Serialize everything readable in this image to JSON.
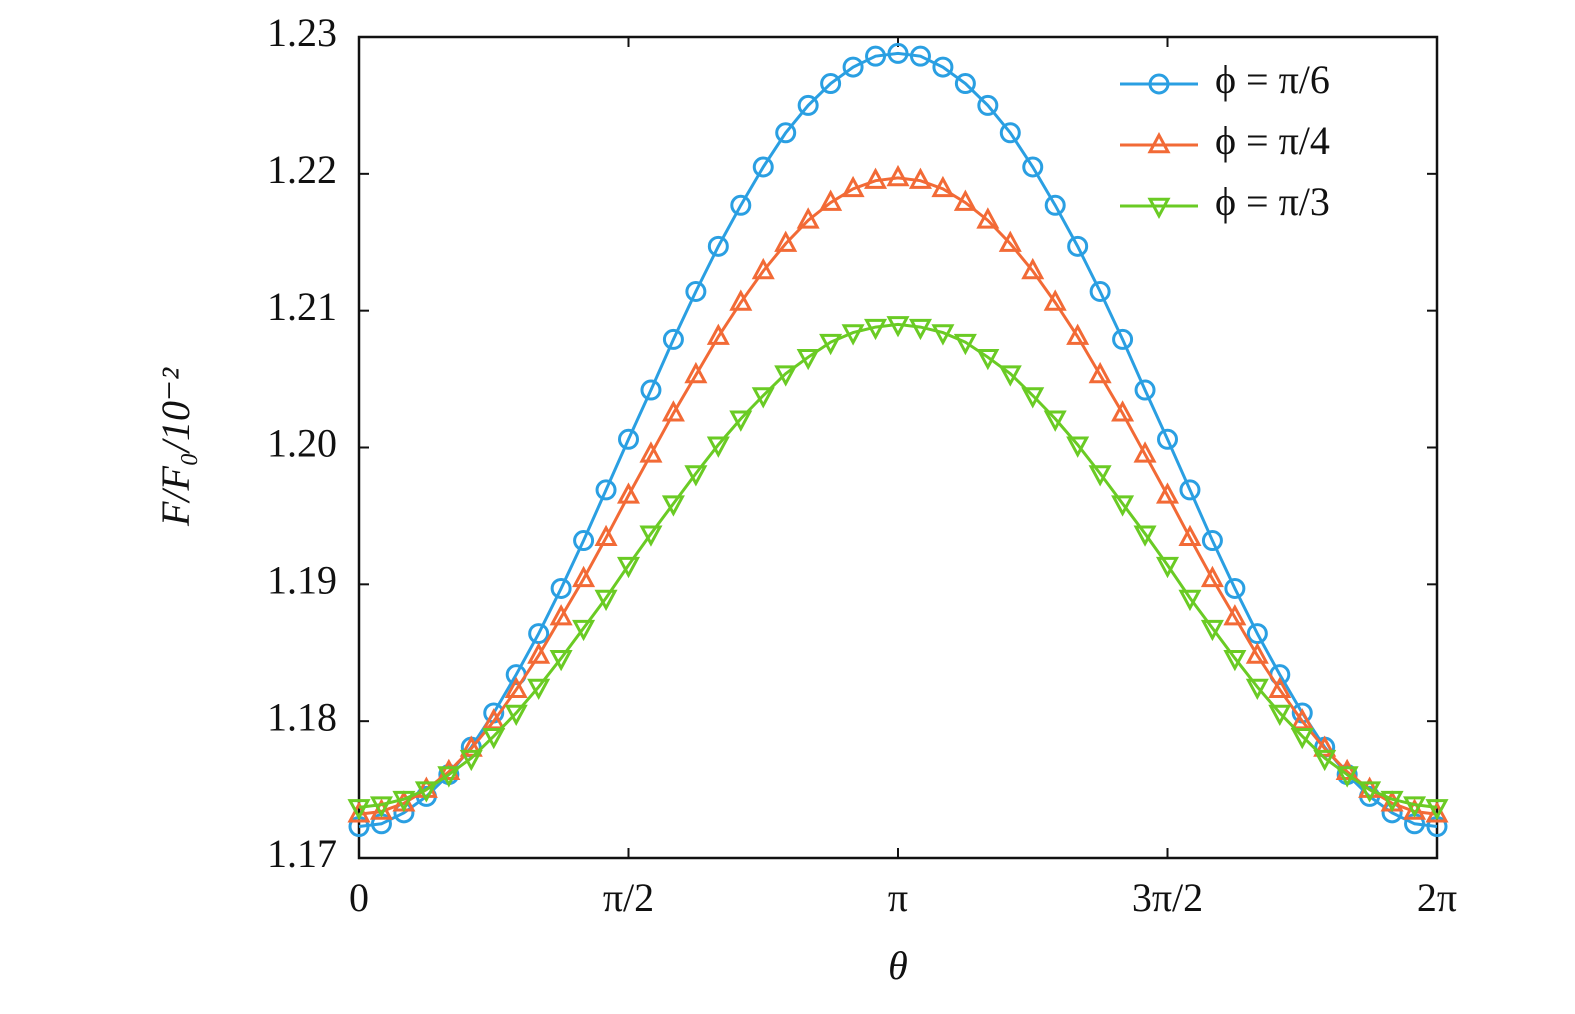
{
  "chart_data": {
    "type": "line",
    "x_label": "θ",
    "y_label": "F/F₀/10⁻²",
    "x": [
      0,
      0.1309,
      0.2618,
      0.3927,
      0.5236,
      0.6545,
      0.7854,
      0.9163,
      1.0472,
      1.1781,
      1.309,
      1.4399,
      1.5708,
      1.7017,
      1.8326,
      1.9635,
      2.0944,
      2.2253,
      2.3562,
      2.4871,
      2.618,
      2.7489,
      2.8798,
      3.0107,
      3.1416,
      3.2725,
      3.4034,
      3.5343,
      3.6652,
      3.7961,
      3.927,
      4.0579,
      4.1888,
      4.3197,
      4.4506,
      4.5815,
      4.7124,
      4.8433,
      4.9742,
      5.1051,
      5.236,
      5.3669,
      5.4978,
      5.6287,
      5.7596,
      5.8905,
      6.0214,
      6.1523,
      6.2832
    ],
    "series": [
      {
        "name": "ϕ = π/6",
        "color": "#2a9fe2",
        "marker": "circle",
        "values": [
          1.1723,
          1.1725,
          1.1733,
          1.1745,
          1.1761,
          1.1781,
          1.1806,
          1.1834,
          1.1864,
          1.1897,
          1.1932,
          1.1969,
          1.2006,
          1.2042,
          1.2079,
          1.2114,
          1.2147,
          1.2177,
          1.2205,
          1.223,
          1.225,
          1.2266,
          1.2278,
          1.2286,
          1.2288,
          1.2286,
          1.2278,
          1.2266,
          1.225,
          1.223,
          1.2205,
          1.2177,
          1.2147,
          1.2114,
          1.2079,
          1.2042,
          1.2006,
          1.1969,
          1.1932,
          1.1897,
          1.1864,
          1.1834,
          1.1806,
          1.1781,
          1.1761,
          1.1745,
          1.1733,
          1.1725,
          1.1723
        ]
      },
      {
        "name": "ϕ = π/4",
        "color": "#f26a36",
        "marker": "triangle-up",
        "values": [
          1.1732,
          1.1734,
          1.174,
          1.175,
          1.1763,
          1.178,
          1.18,
          1.1823,
          1.1848,
          1.1876,
          1.1904,
          1.1934,
          1.1965,
          1.1995,
          1.2025,
          1.2053,
          1.2081,
          1.2106,
          1.2129,
          1.2149,
          1.2166,
          1.2179,
          1.2189,
          1.2195,
          1.2197,
          1.2195,
          1.2189,
          1.2179,
          1.2166,
          1.2149,
          1.2129,
          1.2106,
          1.2081,
          1.2053,
          1.2025,
          1.1995,
          1.1965,
          1.1934,
          1.1904,
          1.1876,
          1.1848,
          1.1823,
          1.18,
          1.178,
          1.1763,
          1.175,
          1.174,
          1.1734,
          1.1732
        ]
      },
      {
        "name": "ϕ = π/3",
        "color": "#6acb24",
        "marker": "triangle-down",
        "values": [
          1.1737,
          1.1739,
          1.1743,
          1.175,
          1.1761,
          1.1773,
          1.1789,
          1.1806,
          1.1825,
          1.1846,
          1.1868,
          1.189,
          1.1914,
          1.1937,
          1.1959,
          1.1981,
          1.2002,
          1.2021,
          1.2038,
          1.2054,
          1.2066,
          1.2077,
          1.2084,
          1.2088,
          1.209,
          1.2088,
          1.2084,
          1.2077,
          1.2066,
          1.2054,
          1.2038,
          1.2021,
          1.2002,
          1.1981,
          1.1959,
          1.1937,
          1.1914,
          1.189,
          1.1868,
          1.1846,
          1.1825,
          1.1806,
          1.1789,
          1.1773,
          1.1761,
          1.175,
          1.1743,
          1.1739,
          1.1737
        ]
      }
    ],
    "xlim": [
      0,
      6.2832
    ],
    "xticks": [
      0,
      {
        "value": 1.5708,
        "label": "π/2"
      },
      {
        "value": 3.1416,
        "label": "π"
      },
      {
        "value": 4.7124,
        "label": "3π/2"
      },
      {
        "value": 6.2832,
        "label": "2π"
      }
    ],
    "ylim": [
      1.17,
      1.23
    ],
    "yticks": [
      1.17,
      1.18,
      1.19,
      {
        "value": 1.2,
        "label": "1.20"
      },
      1.21,
      1.22,
      1.23
    ],
    "grid": false,
    "legend": "upper right"
  }
}
